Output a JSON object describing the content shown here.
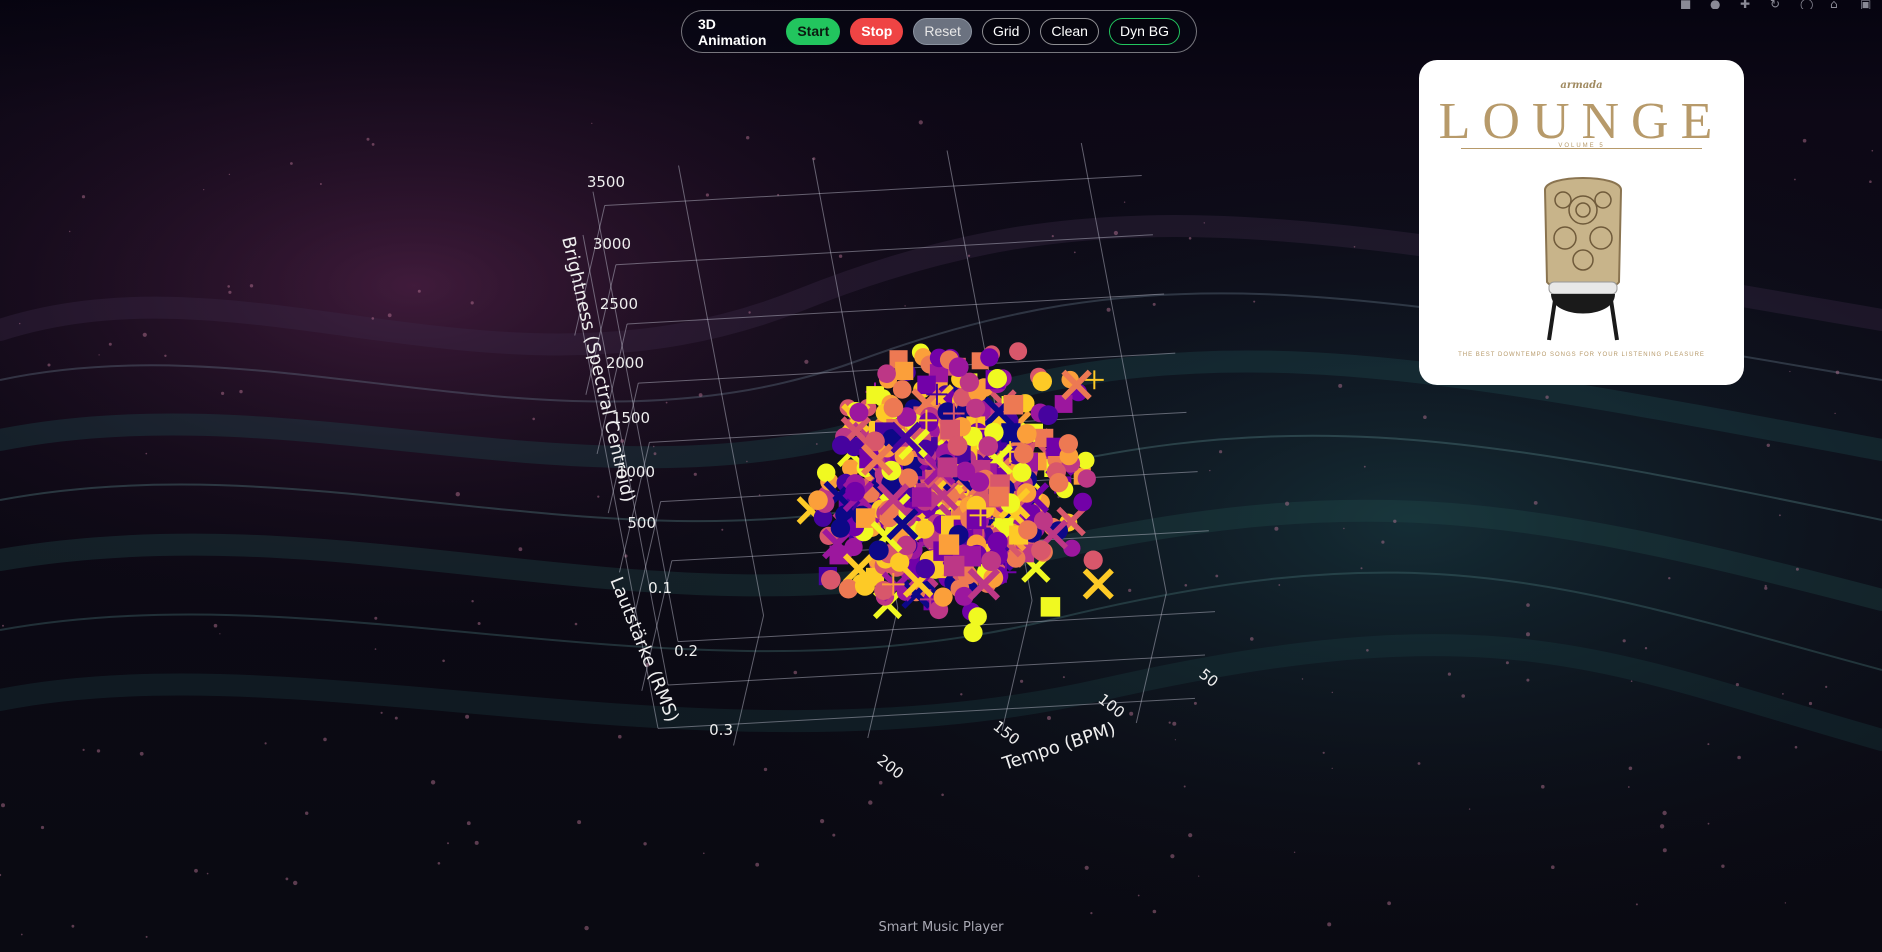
{
  "toolbar": {
    "title": "3D Animation",
    "buttons": [
      "Start",
      "Stop",
      "Reset",
      "Grid",
      "Clean",
      "Dyn BG"
    ]
  },
  "modebar_icons": [
    "camera-icon",
    "zoom-icon",
    "pan-icon",
    "orbit-icon",
    "turntable-icon",
    "home-icon",
    "video-icon"
  ],
  "album": {
    "brand": "armada",
    "title": "LOUNGE",
    "subtitle": "VOLUME 5",
    "tagline": "THE BEST DOWNTEMPO SONGS FOR YOUR LISTENING PLEASURE"
  },
  "footer": "Smart Music Player",
  "colors": {
    "start": "#22c55e",
    "stop": "#ef4444",
    "reset": "#6b7280",
    "palette": [
      "#0d0887",
      "#46039f",
      "#7201a8",
      "#9c179e",
      "#bd3786",
      "#d8576b",
      "#ed7953",
      "#fb9f3a",
      "#fdca26",
      "#f0f921"
    ]
  },
  "chart_data": {
    "type": "scatter",
    "scatter_3d": true,
    "colorscale": "Plasma",
    "axes": {
      "x": {
        "label": "Tempo (BPM)",
        "ticks": [
          50,
          100,
          150,
          200
        ],
        "range": [
          30,
          230
        ]
      },
      "y": {
        "label": "Lautstärke (RMS)",
        "ticks": [
          0.1,
          0.2,
          0.3
        ],
        "range": [
          0.05,
          0.35
        ]
      },
      "z": {
        "label": "Brightness (Spectral Centroid)",
        "ticks": [
          500,
          1000,
          1500,
          2000,
          2500,
          3000,
          3500
        ],
        "range": [
          0,
          3800
        ]
      }
    },
    "marker_symbols": [
      "circle",
      "square",
      "x",
      "cross"
    ],
    "point_count": 900,
    "grid": true
  }
}
